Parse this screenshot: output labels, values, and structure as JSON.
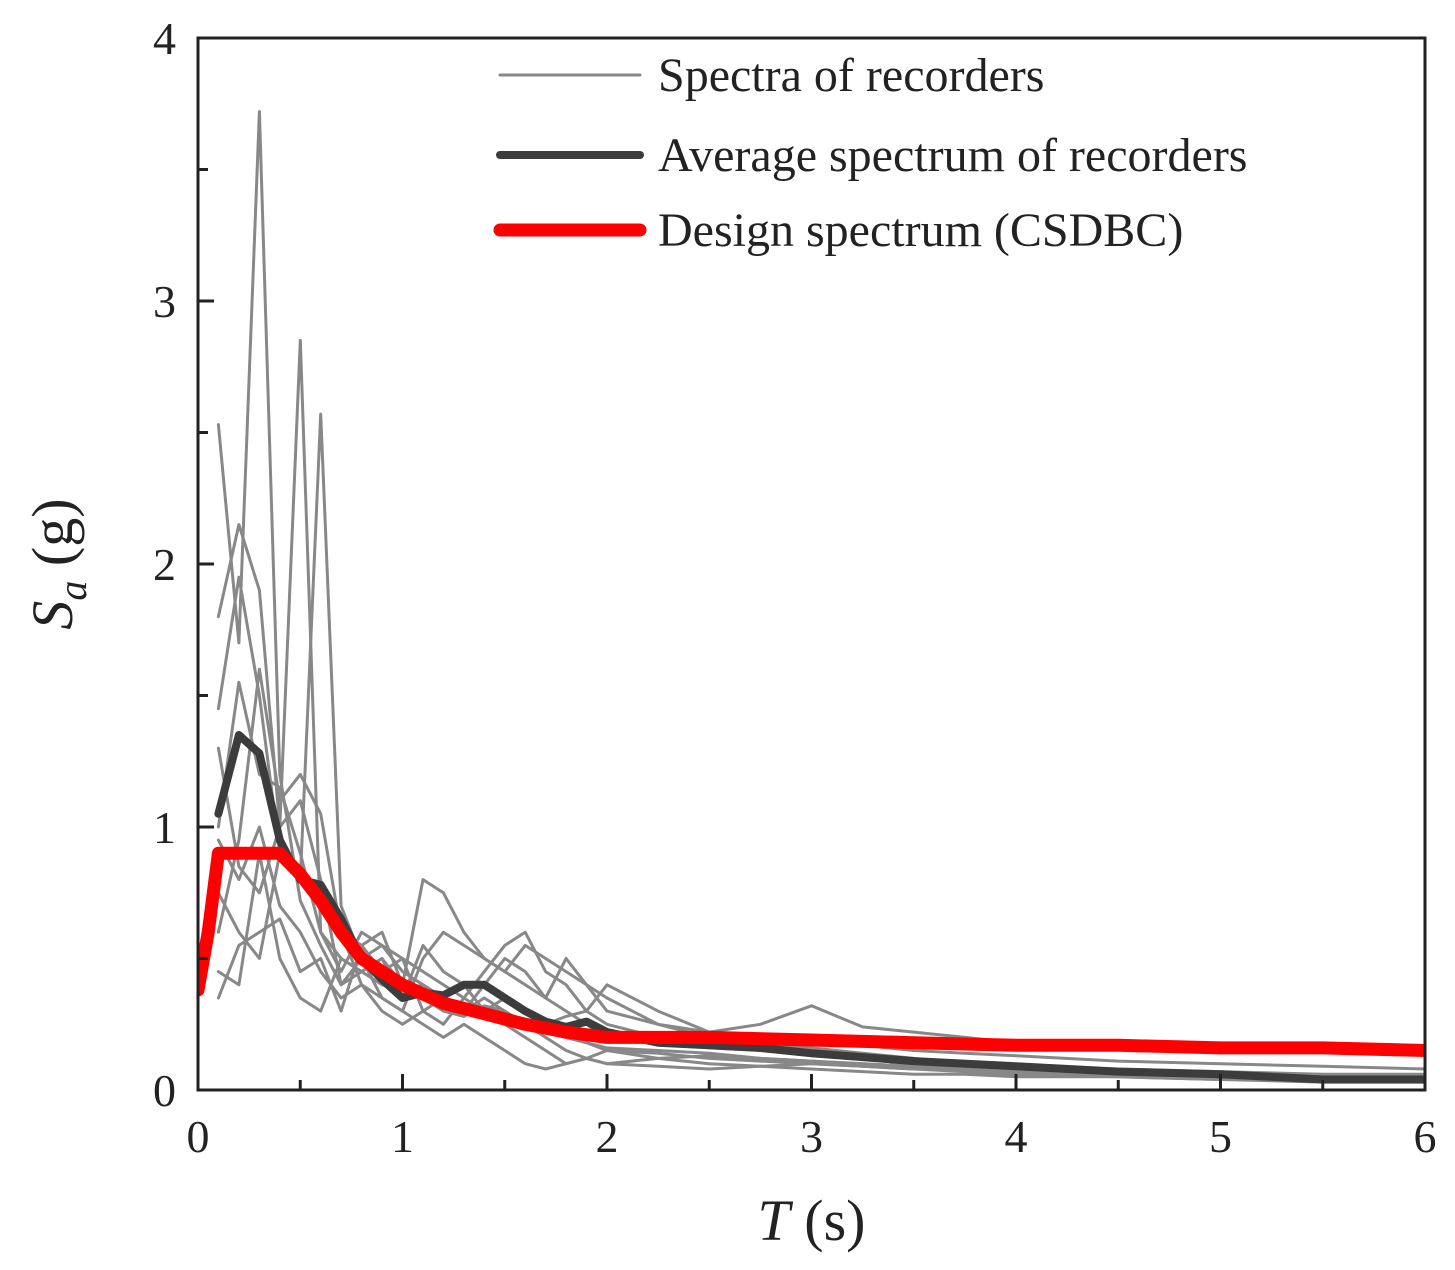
{
  "chart_data": {
    "type": "line",
    "xlabel": {
      "main": "T",
      "unit": " (s)"
    },
    "ylabel": {
      "main": "S",
      "subscript": "a",
      "unit": " (g)"
    },
    "xlim": [
      0,
      6
    ],
    "ylim": [
      0,
      4
    ],
    "xticks": [
      0,
      1,
      2,
      3,
      4,
      5,
      6
    ],
    "yticks": [
      0,
      1,
      2,
      3,
      4
    ],
    "x_minor_step": 0.5,
    "y_minor_step": 0.5,
    "grid": false,
    "legend_position": "top-right",
    "legend": [
      {
        "label": "Spectra of recorders",
        "color": "#888888",
        "width": 3
      },
      {
        "label": "Average spectrum of recorders",
        "color": "#3c3c3c",
        "width": 8
      },
      {
        "label": "Design spectrum (CSDBC)",
        "color": "#ff0000",
        "width": 13
      }
    ],
    "recorder_spectra": {
      "name": "Spectra of recorders",
      "color": "#888888",
      "x": [
        0.1,
        0.2,
        0.3,
        0.4,
        0.5,
        0.6,
        0.7,
        0.8,
        0.9,
        1.0,
        1.1,
        1.2,
        1.3,
        1.4,
        1.5,
        1.6,
        1.7,
        1.8,
        1.9,
        2.0,
        2.25,
        2.5,
        2.75,
        3.0,
        3.25,
        3.5,
        3.75,
        4.0,
        4.5,
        5.0,
        5.5,
        6.0
      ],
      "series": [
        [
          2.53,
          1.7,
          3.72,
          1.2,
          0.72,
          0.55,
          0.4,
          0.45,
          0.4,
          0.38,
          0.4,
          0.35,
          0.3,
          0.4,
          0.5,
          0.45,
          0.35,
          0.3,
          0.25,
          0.2,
          0.18,
          0.16,
          0.15,
          0.13,
          0.12,
          0.1,
          0.09,
          0.08,
          0.07,
          0.06,
          0.05,
          0.05
        ],
        [
          1.8,
          2.15,
          1.9,
          1.0,
          2.85,
          0.6,
          0.5,
          0.45,
          0.5,
          0.4,
          0.35,
          0.3,
          0.28,
          0.32,
          0.3,
          0.25,
          0.22,
          0.2,
          0.18,
          0.16,
          0.15,
          0.14,
          0.12,
          0.11,
          0.1,
          0.09,
          0.08,
          0.07,
          0.06,
          0.05,
          0.04,
          0.04
        ],
        [
          1.45,
          1.95,
          1.5,
          0.9,
          0.8,
          2.57,
          0.7,
          0.5,
          0.55,
          0.45,
          0.4,
          0.35,
          0.3,
          0.3,
          0.28,
          0.25,
          0.22,
          0.2,
          0.18,
          0.15,
          0.14,
          0.12,
          0.11,
          0.1,
          0.09,
          0.08,
          0.08,
          0.07,
          0.06,
          0.05,
          0.04,
          0.04
        ],
        [
          1.0,
          1.55,
          1.2,
          1.15,
          0.9,
          0.6,
          0.45,
          0.6,
          0.55,
          0.5,
          0.3,
          0.25,
          0.35,
          0.45,
          0.55,
          0.6,
          0.45,
          0.4,
          0.3,
          0.25,
          0.2,
          0.18,
          0.16,
          0.14,
          0.12,
          0.1,
          0.09,
          0.08,
          0.07,
          0.06,
          0.05,
          0.05
        ],
        [
          0.6,
          0.95,
          1.6,
          1.1,
          1.2,
          1.05,
          0.6,
          0.4,
          0.35,
          0.3,
          0.5,
          0.6,
          0.55,
          0.5,
          0.45,
          0.55,
          0.5,
          0.45,
          0.4,
          0.35,
          0.25,
          0.2,
          0.18,
          0.16,
          0.14,
          0.12,
          0.1,
          0.09,
          0.08,
          0.07,
          0.06,
          0.06
        ],
        [
          0.35,
          0.55,
          0.6,
          0.65,
          0.45,
          0.5,
          0.3,
          0.55,
          0.6,
          0.4,
          0.8,
          0.75,
          0.6,
          0.5,
          0.45,
          0.4,
          0.35,
          0.5,
          0.4,
          0.3,
          0.25,
          0.22,
          0.2,
          0.18,
          0.17,
          0.15,
          0.14,
          0.13,
          0.11,
          0.1,
          0.09,
          0.08
        ],
        [
          0.45,
          0.4,
          0.9,
          0.5,
          0.35,
          0.3,
          0.5,
          0.45,
          0.5,
          0.35,
          0.55,
          0.45,
          0.4,
          0.3,
          0.35,
          0.3,
          0.25,
          0.28,
          0.3,
          0.4,
          0.3,
          0.22,
          0.25,
          0.32,
          0.24,
          0.22,
          0.2,
          0.18,
          0.17,
          0.16,
          0.15,
          0.15
        ],
        [
          0.95,
          0.8,
          1.0,
          0.7,
          0.6,
          0.45,
          0.35,
          0.4,
          0.3,
          0.25,
          0.3,
          0.35,
          0.3,
          0.35,
          0.3,
          0.25,
          0.2,
          0.15,
          0.12,
          0.1,
          0.09,
          0.08,
          0.09,
          0.1,
          0.09,
          0.08,
          0.07,
          0.06,
          0.05,
          0.04,
          0.04,
          0.03
        ],
        [
          0.75,
          0.6,
          0.5,
          0.9,
          0.8,
          0.7,
          0.6,
          0.55,
          0.45,
          0.5,
          0.45,
          0.4,
          0.35,
          0.3,
          0.25,
          0.2,
          0.15,
          0.1,
          0.12,
          0.15,
          0.12,
          0.1,
          0.09,
          0.08,
          0.07,
          0.06,
          0.06,
          0.05,
          0.05,
          0.04,
          0.03,
          0.03
        ],
        [
          1.3,
          0.85,
          0.75,
          1.0,
          1.1,
          0.8,
          0.4,
          0.5,
          0.35,
          0.3,
          0.25,
          0.2,
          0.25,
          0.2,
          0.15,
          0.1,
          0.08,
          0.1,
          0.12,
          0.1,
          0.12,
          0.13,
          0.12,
          0.11,
          0.1,
          0.09,
          0.08,
          0.07,
          0.06,
          0.05,
          0.05,
          0.04
        ]
      ]
    },
    "average_spectrum": {
      "name": "Average spectrum of recorders",
      "color": "#3c3c3c",
      "x": [
        0.1,
        0.2,
        0.3,
        0.4,
        0.5,
        0.6,
        0.7,
        0.8,
        0.9,
        1.0,
        1.1,
        1.2,
        1.3,
        1.4,
        1.5,
        1.6,
        1.7,
        1.8,
        1.9,
        2.0,
        2.25,
        2.5,
        2.75,
        3.0,
        3.5,
        4.0,
        4.5,
        5.0,
        5.5,
        6.0
      ],
      "y": [
        1.05,
        1.35,
        1.28,
        0.95,
        0.8,
        0.78,
        0.65,
        0.5,
        0.42,
        0.35,
        0.37,
        0.36,
        0.4,
        0.4,
        0.35,
        0.3,
        0.26,
        0.24,
        0.26,
        0.22,
        0.18,
        0.17,
        0.16,
        0.14,
        0.11,
        0.09,
        0.07,
        0.06,
        0.04,
        0.04
      ]
    },
    "design_spectrum": {
      "name": "Design spectrum (CSDBC)",
      "color": "#ff0000",
      "x": [
        0.0,
        0.05,
        0.1,
        0.2,
        0.3,
        0.4,
        0.5,
        0.6,
        0.7,
        0.8,
        0.9,
        1.0,
        1.2,
        1.4,
        1.6,
        1.8,
        2.0,
        2.5,
        3.0,
        3.5,
        4.0,
        4.5,
        5.0,
        5.5,
        6.0
      ],
      "y": [
        0.38,
        0.6,
        0.9,
        0.9,
        0.9,
        0.9,
        0.82,
        0.72,
        0.6,
        0.5,
        0.45,
        0.4,
        0.33,
        0.29,
        0.25,
        0.22,
        0.2,
        0.2,
        0.19,
        0.18,
        0.17,
        0.17,
        0.16,
        0.16,
        0.15
      ]
    }
  }
}
